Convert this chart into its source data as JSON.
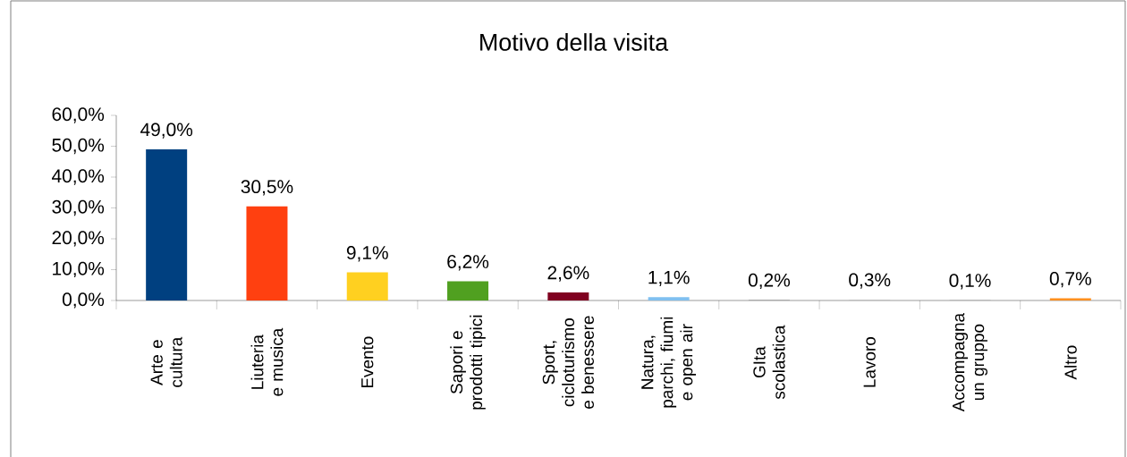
{
  "chart_data": {
    "type": "bar",
    "title": "Motivo della visita",
    "categories": [
      "Arte e cultura",
      "Liuteria e musica",
      "Evento",
      "Sapori e prodotti tipici",
      "Sport, cicloturismo e benessere",
      "Natura, parchi, fiumi e open air",
      "GIta scolastica",
      "Lavoro",
      "Accompagna un gruppo",
      "Altro"
    ],
    "values": [
      49.0,
      30.5,
      9.1,
      6.2,
      2.6,
      1.1,
      0.2,
      0.3,
      0.1,
      0.7
    ],
    "value_labels": [
      "49,0%",
      "30,5%",
      "9,1%",
      "6,2%",
      "2,6%",
      "1,1%",
      "0,2%",
      "0,3%",
      "0,1%",
      "0,7%"
    ],
    "colors": [
      "#004080",
      "#ff4010",
      "#ffd020",
      "#50a020",
      "#800020",
      "#80c0f0",
      "#a0a0a0",
      "#c0c0c0",
      "#909090",
      "#ff9020"
    ],
    "ylim": [
      0,
      60
    ],
    "yticks": [
      {
        "value": 0,
        "label": "0,0%"
      },
      {
        "value": 10,
        "label": "10,0%"
      },
      {
        "value": 20,
        "label": "20,0%"
      },
      {
        "value": 30,
        "label": "30,0%"
      },
      {
        "value": 40,
        "label": "40,0%"
      },
      {
        "value": 50,
        "label": "50,0%"
      },
      {
        "value": 60,
        "label": "60,0%"
      }
    ],
    "grid": false
  }
}
